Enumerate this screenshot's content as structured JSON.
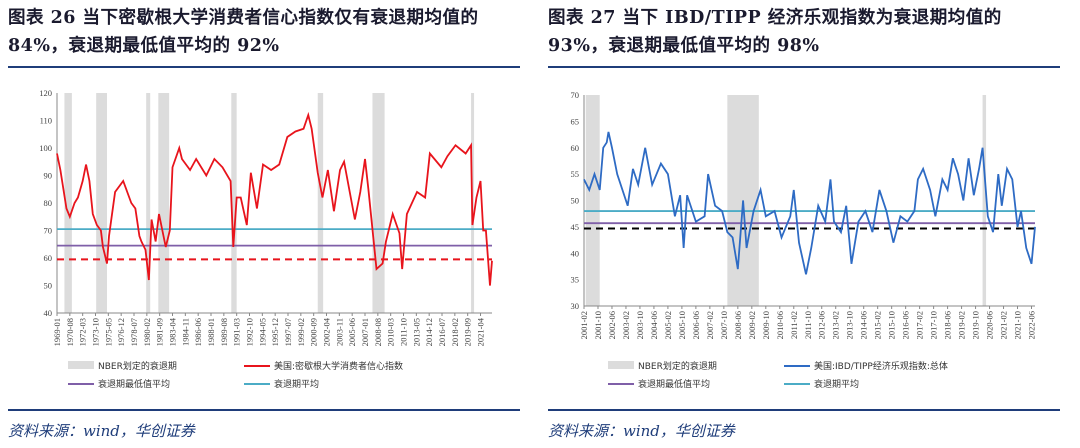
{
  "charts": [
    {
      "title": "图表 26 当下密歇根大学消费者信心指数仅有衰退期均值的 84%，衰退期最低值平均的 92%",
      "source": "资料来源：wind，华创证券",
      "chart_data": {
        "type": "line",
        "ylim": [
          40,
          120
        ],
        "yticks": [
          40,
          50,
          60,
          70,
          80,
          90,
          100,
          110,
          120
        ],
        "xlim": [
          "1969-01",
          "2022-09"
        ],
        "xticks": [
          "1969-01",
          "1970-08",
          "1972-03",
          "1973-10",
          "1975-05",
          "1976-12",
          "1978-07",
          "1980-02",
          "1981-09",
          "1983-04",
          "1984-11",
          "1986-06",
          "1988-01",
          "1989-08",
          "1991-03",
          "1992-10",
          "1994-05",
          "1995-12",
          "1997-07",
          "1999-02",
          "2000-09",
          "2002-04",
          "2003-11",
          "2005-06",
          "2007-01",
          "2008-08",
          "2010-03",
          "2011-10",
          "2013-05",
          "2014-12",
          "2016-07",
          "2018-02",
          "2019-09",
          "2021-04"
        ],
        "recessions": [
          [
            "1969-12",
            "1970-11"
          ],
          [
            "1973-11",
            "1975-03"
          ],
          [
            "1980-01",
            "1980-07"
          ],
          [
            "1981-07",
            "1982-11"
          ],
          [
            "1990-07",
            "1991-03"
          ],
          [
            "2001-03",
            "2001-11"
          ],
          [
            "2007-12",
            "2009-06"
          ],
          [
            "2020-02",
            "2020-04"
          ]
        ],
        "series": {
          "name": "美国:密歇根大学消费者信心指数",
          "color": "#e8141c",
          "points": [
            [
              "1969-01",
              98
            ],
            [
              "1969-06",
              92
            ],
            [
              "1970-03",
              78
            ],
            [
              "1970-08",
              75
            ],
            [
              "1971-03",
              80
            ],
            [
              "1971-08",
              82
            ],
            [
              "1972-03",
              88
            ],
            [
              "1972-08",
              94
            ],
            [
              "1973-01",
              88
            ],
            [
              "1973-06",
              76
            ],
            [
              "1973-12",
              72
            ],
            [
              "1974-06",
              70
            ],
            [
              "1974-09",
              64
            ],
            [
              "1975-03",
              58
            ],
            [
              "1975-06",
              68
            ],
            [
              "1976-03",
              84
            ],
            [
              "1977-03",
              88
            ],
            [
              "1977-09",
              84
            ],
            [
              "1978-03",
              80
            ],
            [
              "1978-09",
              78
            ],
            [
              "1979-03",
              68
            ],
            [
              "1979-06",
              66
            ],
            [
              "1979-12",
              63
            ],
            [
              "1980-05",
              52
            ],
            [
              "1980-09",
              74
            ],
            [
              "1981-03",
              66
            ],
            [
              "1981-08",
              76
            ],
            [
              "1982-06",
              64
            ],
            [
              "1982-12",
              70
            ],
            [
              "1983-04",
              93
            ],
            [
              "1984-02",
              100
            ],
            [
              "1984-06",
              96
            ],
            [
              "1985-06",
              92
            ],
            [
              "1986-03",
              96
            ],
            [
              "1987-06",
              90
            ],
            [
              "1988-06",
              96
            ],
            [
              "1989-06",
              93
            ],
            [
              "1990-06",
              88
            ],
            [
              "1990-10",
              64
            ],
            [
              "1991-03",
              82
            ],
            [
              "1991-09",
              82
            ],
            [
              "1992-06",
              72
            ],
            [
              "1992-12",
              91
            ],
            [
              "1993-09",
              78
            ],
            [
              "1994-06",
              94
            ],
            [
              "1995-06",
              92
            ],
            [
              "1996-06",
              94
            ],
            [
              "1997-06",
              104
            ],
            [
              "1998-06",
              106
            ],
            [
              "1999-06",
              107
            ],
            [
              "2000-01",
              112
            ],
            [
              "2000-06",
              107
            ],
            [
              "2001-03",
              91
            ],
            [
              "2001-10",
              82
            ],
            [
              "2002-06",
              92
            ],
            [
              "2003-03",
              77
            ],
            [
              "2003-12",
              92
            ],
            [
              "2004-06",
              95
            ],
            [
              "2005-10",
              74
            ],
            [
              "2006-06",
              84
            ],
            [
              "2007-01",
              96
            ],
            [
              "2007-06",
              85
            ],
            [
              "2008-06",
              56
            ],
            [
              "2009-03",
              58
            ],
            [
              "2009-08",
              66
            ],
            [
              "2010-06",
              76
            ],
            [
              "2011-04",
              69
            ],
            [
              "2011-08",
              56
            ],
            [
              "2012-03",
              76
            ],
            [
              "2013-06",
              84
            ],
            [
              "2014-06",
              82
            ],
            [
              "2015-01",
              98
            ],
            [
              "2016-06",
              93
            ],
            [
              "2017-03",
              97
            ],
            [
              "2018-03",
              101
            ],
            [
              "2019-06",
              98
            ],
            [
              "2020-02",
              101
            ],
            [
              "2020-04",
              72
            ],
            [
              "2020-10",
              82
            ],
            [
              "2021-04",
              88
            ],
            [
              "2021-08",
              70
            ],
            [
              "2021-12",
              70
            ],
            [
              "2022-06",
              50
            ],
            [
              "2022-09",
              59
            ]
          ]
        },
        "hlines": [
          {
            "name": "衰退期平均",
            "value": 70.5,
            "color": "#4bacc6",
            "dash": false
          },
          {
            "name": "衰退期最低值平均",
            "value": 64.5,
            "color": "#7f5fa8",
            "dash": false
          },
          {
            "value": 59.5,
            "color": "#e8141c",
            "dash": true
          }
        ],
        "legend": [
          "NBER划定的衰退期",
          "美国:密歇根大学消费者信心指数",
          "衰退期最低值平均",
          "衰退期平均"
        ]
      }
    },
    {
      "title": "图表 27 当下 IBD/TIPP 经济乐观指数为衰退期均值的 93%，衰退期最低值平均的 98%",
      "source": "资料来源：wind，华创证券",
      "chart_data": {
        "type": "line",
        "ylim": [
          30,
          70
        ],
        "yticks": [
          30,
          35,
          40,
          45,
          50,
          55,
          60,
          65,
          70
        ],
        "xlim": [
          "2001-02",
          "2022-08"
        ],
        "xticks": [
          "2001-02",
          "2001-10",
          "2002-06",
          "2003-02",
          "2003-10",
          "2004-06",
          "2005-02",
          "2005-10",
          "2006-06",
          "2007-02",
          "2007-10",
          "2008-06",
          "2009-02",
          "2009-10",
          "2010-06",
          "2011-02",
          "2011-10",
          "2012-06",
          "2013-02",
          "2013-10",
          "2014-06",
          "2015-02",
          "2015-10",
          "2016-06",
          "2017-02",
          "2017-10",
          "2018-06",
          "2019-02",
          "2019-10",
          "2020-06",
          "2021-02",
          "2021-10",
          "2022-06"
        ],
        "recessions": [
          [
            "2001-03",
            "2001-11"
          ],
          [
            "2007-12",
            "2009-06"
          ],
          [
            "2020-02",
            "2020-04"
          ]
        ],
        "series": {
          "name": "美国:IBD/TIPP经济乐观指数:总体",
          "color": "#2e6bc4",
          "points": [
            [
              "2001-02",
              54
            ],
            [
              "2001-05",
              52
            ],
            [
              "2001-08",
              55
            ],
            [
              "2001-11",
              52
            ],
            [
              "2002-01",
              60
            ],
            [
              "2002-03",
              61
            ],
            [
              "2002-04",
              63
            ],
            [
              "2002-06",
              60
            ],
            [
              "2002-09",
              55
            ],
            [
              "2003-03",
              49
            ],
            [
              "2003-06",
              56
            ],
            [
              "2003-09",
              53
            ],
            [
              "2004-01",
              60
            ],
            [
              "2004-05",
              53
            ],
            [
              "2004-10",
              57
            ],
            [
              "2005-02",
              55
            ],
            [
              "2005-06",
              47
            ],
            [
              "2005-09",
              51
            ],
            [
              "2005-11",
              41
            ],
            [
              "2006-01",
              51
            ],
            [
              "2006-06",
              46
            ],
            [
              "2006-11",
              47
            ],
            [
              "2007-01",
              55
            ],
            [
              "2007-05",
              49
            ],
            [
              "2007-09",
              48
            ],
            [
              "2007-12",
              44
            ],
            [
              "2008-03",
              43
            ],
            [
              "2008-06",
              37
            ],
            [
              "2008-09",
              50
            ],
            [
              "2008-11",
              41
            ],
            [
              "2009-03",
              48
            ],
            [
              "2009-07",
              52
            ],
            [
              "2009-10",
              47
            ],
            [
              "2010-03",
              48
            ],
            [
              "2010-07",
              43
            ],
            [
              "2010-12",
              47
            ],
            [
              "2011-02",
              52
            ],
            [
              "2011-05",
              42
            ],
            [
              "2011-09",
              36
            ],
            [
              "2011-12",
              41
            ],
            [
              "2012-04",
              49
            ],
            [
              "2012-08",
              46
            ],
            [
              "2012-11",
              54
            ],
            [
              "2013-01",
              46
            ],
            [
              "2013-05",
              44
            ],
            [
              "2013-08",
              49
            ],
            [
              "2013-11",
              38
            ],
            [
              "2014-03",
              46
            ],
            [
              "2014-07",
              48
            ],
            [
              "2014-11",
              44
            ],
            [
              "2015-03",
              52
            ],
            [
              "2015-07",
              48
            ],
            [
              "2015-11",
              42
            ],
            [
              "2016-03",
              47
            ],
            [
              "2016-07",
              46
            ],
            [
              "2016-11",
              48
            ],
            [
              "2017-01",
              54
            ],
            [
              "2017-04",
              56
            ],
            [
              "2017-08",
              52
            ],
            [
              "2017-11",
              47
            ],
            [
              "2018-03",
              54
            ],
            [
              "2018-06",
              52
            ],
            [
              "2018-09",
              58
            ],
            [
              "2018-12",
              55
            ],
            [
              "2019-03",
              50
            ],
            [
              "2019-06",
              58
            ],
            [
              "2019-09",
              51
            ],
            [
              "2019-12",
              56
            ],
            [
              "2020-02",
              60
            ],
            [
              "2020-05",
              47
            ],
            [
              "2020-08",
              44
            ],
            [
              "2020-11",
              55
            ],
            [
              "2021-01",
              49
            ],
            [
              "2021-04",
              56
            ],
            [
              "2021-07",
              54
            ],
            [
              "2021-10",
              45
            ],
            [
              "2021-12",
              48
            ],
            [
              "2022-03",
              41
            ],
            [
              "2022-06",
              38
            ],
            [
              "2022-08",
              45
            ]
          ]
        },
        "hlines": [
          {
            "name": "衰退期平均",
            "value": 48,
            "color": "#4bacc6",
            "dash": false
          },
          {
            "name": "衰退期最低值平均",
            "value": 45.7,
            "color": "#7f5fa8",
            "dash": false
          },
          {
            "value": 44.7,
            "color": "#000000",
            "dash": true
          }
        ],
        "legend": [
          "NBER划定的衰退期",
          "美国:IBD/TIPP经济乐观指数:总体",
          "衰退期最低值平均",
          "衰退期平均"
        ]
      }
    }
  ]
}
